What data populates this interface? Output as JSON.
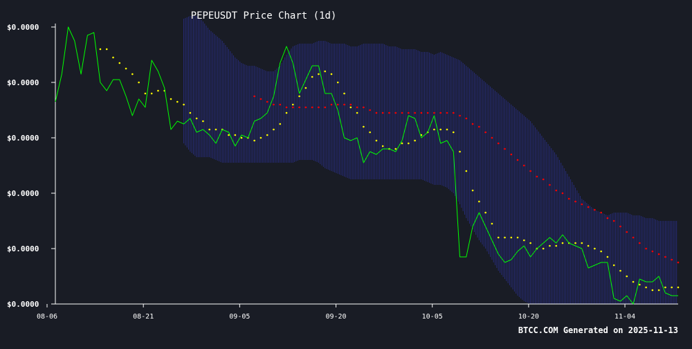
{
  "chart_data": {
    "type": "line",
    "title": "PEPEUSDT Price Chart (1d)",
    "footer": "BTCC.COM Generated on 2025-11-13",
    "xlabel": "",
    "ylabel": "",
    "x_ticks": [
      "08-06",
      "08-21",
      "09-05",
      "09-20",
      "10-05",
      "10-20",
      "11-04"
    ],
    "y_ticks": [
      "$0.0000",
      "$0.0000",
      "$0.0000",
      "$0.0000",
      "$0.0000",
      "$0.0000"
    ],
    "y_tick_values": [
      0.0,
      0.2,
      0.4,
      0.6,
      0.8,
      1.0
    ],
    "ylim": [
      0.0,
      1.0
    ],
    "grid": false,
    "colors": {
      "background": "#191c25",
      "axis": "#ffffff",
      "price": "#00ff00",
      "sma_short": "#ffff00",
      "sma_long": "#ff0000",
      "bands": "#2a2f8a"
    },
    "series": [
      {
        "key": "price",
        "values": [
          0.73,
          0.83,
          1.0,
          0.95,
          0.83,
          0.97,
          0.98,
          0.8,
          0.77,
          0.81,
          0.81,
          0.75,
          0.68,
          0.74,
          0.71,
          0.88,
          0.84,
          0.78,
          0.63,
          0.66,
          0.65,
          0.67,
          0.62,
          0.63,
          0.61,
          0.58,
          0.63,
          0.62,
          0.57,
          0.61,
          0.6,
          0.66,
          0.67,
          0.69,
          0.75,
          0.87,
          0.93,
          0.87,
          0.76,
          0.81,
          0.86,
          0.86,
          0.76,
          0.76,
          0.7,
          0.6,
          0.59,
          0.6,
          0.51,
          0.55,
          0.54,
          0.56,
          0.56,
          0.55,
          0.59,
          0.68,
          0.67,
          0.6,
          0.62,
          0.68,
          0.58,
          0.59,
          0.55,
          0.17,
          0.17,
          0.28,
          0.33,
          0.28,
          0.23,
          0.18,
          0.15,
          0.16,
          0.19,
          0.21,
          0.17,
          0.2,
          0.22,
          0.24,
          0.22,
          0.25,
          0.22,
          0.21,
          0.2,
          0.13,
          0.14,
          0.15,
          0.15,
          0.02,
          0.01,
          0.03,
          0.0,
          0.09,
          0.08,
          0.08,
          0.1,
          0.04,
          0.03,
          0.03
        ]
      },
      {
        "key": "sma_short",
        "values": [
          null,
          null,
          null,
          null,
          null,
          null,
          null,
          0.92,
          0.92,
          0.89,
          0.87,
          0.85,
          0.83,
          0.8,
          0.76,
          0.76,
          0.77,
          0.77,
          0.74,
          0.73,
          0.72,
          0.69,
          0.67,
          0.66,
          0.63,
          0.63,
          0.63,
          0.61,
          0.61,
          0.6,
          0.6,
          0.59,
          0.6,
          0.61,
          0.63,
          0.65,
          0.69,
          0.72,
          0.75,
          0.78,
          0.82,
          0.83,
          0.84,
          0.83,
          0.8,
          0.76,
          0.71,
          0.69,
          0.64,
          0.62,
          0.59,
          0.57,
          0.56,
          0.56,
          0.58,
          0.58,
          0.59,
          0.61,
          0.62,
          0.63,
          0.63,
          0.63,
          0.62,
          0.55,
          0.48,
          0.41,
          0.37,
          0.33,
          0.29,
          0.24,
          0.24,
          0.24,
          0.24,
          0.23,
          0.22,
          0.2,
          0.2,
          0.21,
          0.21,
          0.22,
          0.22,
          0.22,
          0.22,
          0.21,
          0.2,
          0.19,
          0.17,
          0.14,
          0.12,
          0.1,
          0.08,
          0.07,
          0.06,
          0.05,
          0.05,
          0.06,
          0.06,
          0.06
        ]
      },
      {
        "key": "sma_long",
        "values": [
          null,
          null,
          null,
          null,
          null,
          null,
          null,
          null,
          null,
          null,
          null,
          null,
          null,
          null,
          null,
          null,
          null,
          null,
          null,
          null,
          null,
          null,
          null,
          null,
          null,
          null,
          null,
          null,
          null,
          null,
          null,
          0.75,
          0.74,
          0.73,
          0.72,
          0.72,
          0.71,
          0.71,
          0.71,
          0.71,
          0.71,
          0.71,
          0.71,
          0.72,
          0.72,
          0.72,
          0.72,
          0.71,
          0.71,
          0.7,
          0.69,
          0.69,
          0.69,
          0.69,
          0.69,
          0.69,
          0.69,
          0.69,
          0.69,
          0.69,
          0.69,
          0.69,
          0.69,
          0.68,
          0.67,
          0.65,
          0.64,
          0.62,
          0.6,
          0.58,
          0.56,
          0.54,
          0.52,
          0.5,
          0.48,
          0.46,
          0.45,
          0.43,
          0.41,
          0.4,
          0.38,
          0.37,
          0.36,
          0.35,
          0.34,
          0.33,
          0.31,
          0.3,
          0.28,
          0.26,
          0.24,
          0.22,
          0.2,
          0.19,
          0.18,
          0.17,
          0.16,
          0.15
        ]
      },
      {
        "key": "band_upper",
        "values": [
          null,
          null,
          null,
          null,
          null,
          null,
          null,
          null,
          null,
          null,
          null,
          null,
          null,
          null,
          null,
          null,
          null,
          null,
          null,
          null,
          1.03,
          1.04,
          1.04,
          1.02,
          0.99,
          0.97,
          0.95,
          0.92,
          0.89,
          0.87,
          0.86,
          0.86,
          0.85,
          0.84,
          0.84,
          0.86,
          0.9,
          0.93,
          0.94,
          0.94,
          0.94,
          0.95,
          0.95,
          0.94,
          0.94,
          0.94,
          0.93,
          0.93,
          0.94,
          0.94,
          0.94,
          0.94,
          0.93,
          0.93,
          0.92,
          0.92,
          0.92,
          0.91,
          0.91,
          0.9,
          0.91,
          0.9,
          0.89,
          0.88,
          0.86,
          0.84,
          0.82,
          0.8,
          0.78,
          0.76,
          0.74,
          0.72,
          0.7,
          0.68,
          0.66,
          0.63,
          0.6,
          0.57,
          0.54,
          0.5,
          0.46,
          0.42,
          0.38,
          0.36,
          0.34,
          0.33,
          0.32,
          0.33,
          0.33,
          0.33,
          0.32,
          0.32,
          0.31,
          0.31,
          0.3,
          0.3,
          0.3,
          0.3
        ]
      },
      {
        "key": "band_lower",
        "values": [
          null,
          null,
          null,
          null,
          null,
          null,
          null,
          null,
          null,
          null,
          null,
          null,
          null,
          null,
          null,
          null,
          null,
          null,
          null,
          null,
          0.58,
          0.55,
          0.53,
          0.53,
          0.53,
          0.52,
          0.51,
          0.51,
          0.51,
          0.51,
          0.51,
          0.51,
          0.51,
          0.51,
          0.51,
          0.51,
          0.51,
          0.51,
          0.52,
          0.52,
          0.52,
          0.51,
          0.49,
          0.48,
          0.47,
          0.46,
          0.45,
          0.45,
          0.45,
          0.45,
          0.45,
          0.45,
          0.45,
          0.45,
          0.45,
          0.45,
          0.45,
          0.45,
          0.44,
          0.43,
          0.43,
          0.42,
          0.4,
          0.36,
          0.31,
          0.27,
          0.23,
          0.2,
          0.16,
          0.12,
          0.09,
          0.06,
          0.03,
          0.01,
          0.0,
          0.0,
          0.0,
          0.0,
          0.0,
          0.0,
          0.0,
          0.0,
          0.0,
          0.0,
          0.0,
          0.0,
          0.0,
          0.0,
          0.0,
          0.0,
          0.0,
          0.0,
          0.0,
          0.0,
          0.0,
          0.0,
          0.0,
          0.0
        ]
      }
    ]
  }
}
